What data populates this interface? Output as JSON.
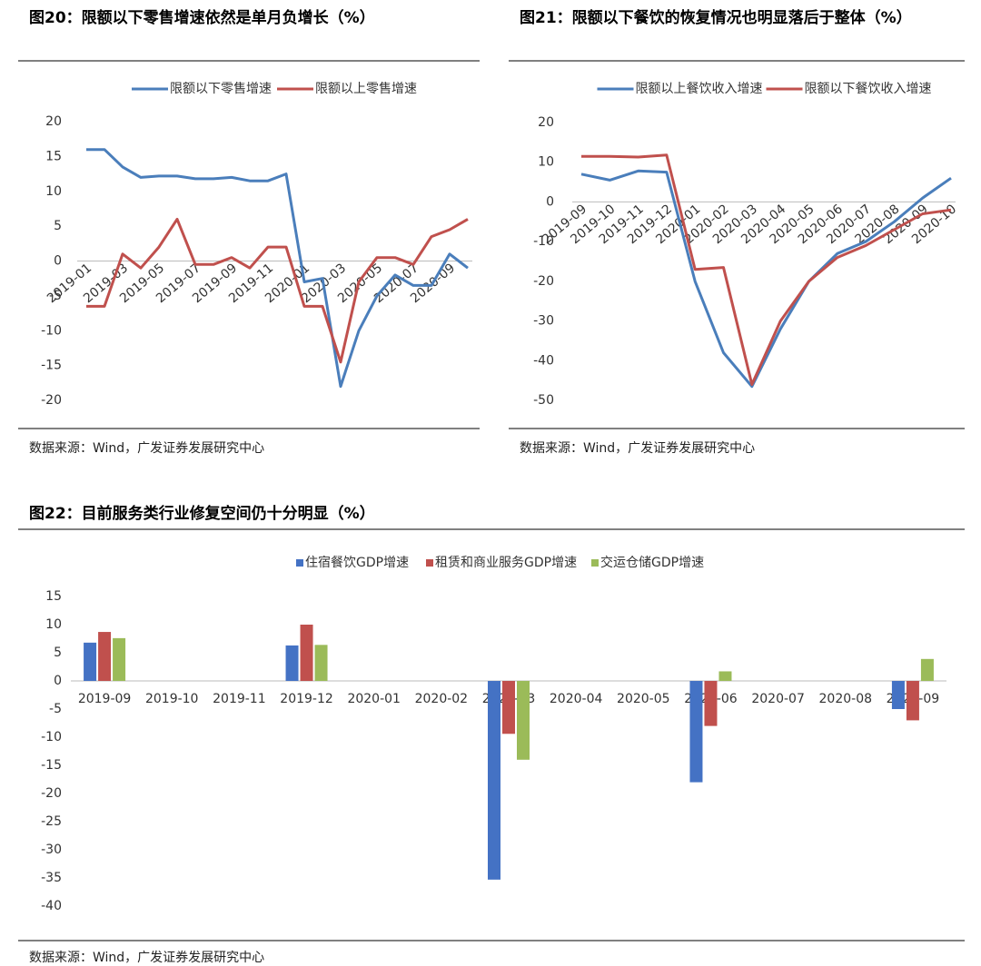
{
  "chart_data": [
    {
      "type": "line",
      "title": "图20：限额以下零售增速依然是单月负增长（%）",
      "source": "数据来源：Wind，广发证券发展研究中心",
      "categories": [
        "2019-01",
        null,
        "2019-03",
        null,
        "2019-05",
        null,
        "2019-07",
        null,
        "2019-09",
        null,
        "2019-11",
        null,
        "2020-01",
        null,
        "2020-03",
        null,
        "2020-05",
        null,
        "2020-07",
        null,
        "2020-09",
        null
      ],
      "series": [
        {
          "name": "限额以下零售增速",
          "color": "#4a7ebb",
          "values": [
            16,
            16,
            13.5,
            12,
            12.2,
            12.2,
            11.8,
            11.8,
            12,
            11.5,
            11.5,
            12.5,
            -3,
            -2.5,
            -18,
            -10,
            -5,
            -2,
            -3.5,
            -3.5,
            1,
            -1
          ]
        },
        {
          "name": "限额以上零售增速",
          "color": "#c0504d",
          "values": [
            -6.5,
            -6.5,
            1,
            -1,
            2,
            6,
            -0.5,
            -0.5,
            0.5,
            -1,
            2,
            2,
            -6.5,
            -6.5,
            -14.5,
            -3,
            0.5,
            0.5,
            -0.5,
            3.5,
            4.5,
            6
          ]
        }
      ],
      "ylim": [
        -20,
        20
      ],
      "yticks": [
        -20,
        -15,
        -10,
        -5,
        0,
        5,
        10,
        15,
        20
      ]
    },
    {
      "type": "line",
      "title": "图21：限额以下餐饮的恢复情况也明显落后于整体（%）",
      "source": "数据来源：Wind，广发证券发展研究中心",
      "categories": [
        "2019-09",
        "2019-10",
        "2019-11",
        "2019-12",
        "2020-01",
        "2020-02",
        "2020-03",
        "2020-04",
        "2020-05",
        "2020-06",
        "2020-07",
        "2020-08",
        "2020-09",
        "2020-10"
      ],
      "series": [
        {
          "name": "限额以上餐饮收入增速",
          "color": "#4a7ebb",
          "values": [
            7,
            5.5,
            7.8,
            7.5,
            -20,
            -38,
            -46.5,
            -32,
            -20,
            -13,
            -10,
            -5,
            1,
            6
          ]
        },
        {
          "name": "限额以下餐饮收入增速",
          "color": "#c0504d",
          "values": [
            11.5,
            11.5,
            11.3,
            11.8,
            -17,
            -16.5,
            -46,
            -30,
            -20,
            -14,
            -11,
            -7,
            -3,
            -2
          ]
        }
      ],
      "ylim": [
        -50,
        20
      ],
      "yticks": [
        -50,
        -40,
        -30,
        -20,
        -10,
        0,
        10,
        20
      ]
    },
    {
      "type": "bar",
      "title": "图22：目前服务类行业修复空间仍十分明显（%）",
      "source": "数据来源：Wind，广发证券发展研究中心",
      "categories": [
        "2019-09",
        "2019-10",
        "2019-11",
        "2019-12",
        "2020-01",
        "2020-02",
        "2020-03",
        "2020-04",
        "2020-05",
        "2020-06",
        "2020-07",
        "2020-08",
        "2020-09"
      ],
      "series": [
        {
          "name": "住宿餐饮GDP增速",
          "color": "#4472c4",
          "values": [
            6.8,
            null,
            null,
            6.3,
            null,
            null,
            -35.3,
            null,
            null,
            -18,
            null,
            null,
            -5
          ]
        },
        {
          "name": "租赁和商业服务GDP增速",
          "color": "#c0504d",
          "values": [
            8.7,
            null,
            null,
            10,
            null,
            null,
            -9.4,
            null,
            null,
            -8,
            null,
            null,
            -7
          ]
        },
        {
          "name": "交运仓储GDP增速",
          "color": "#9bbb59",
          "values": [
            7.6,
            null,
            null,
            6.4,
            null,
            null,
            -14,
            null,
            null,
            1.7,
            null,
            null,
            3.9
          ]
        }
      ],
      "ylim": [
        -40,
        15
      ],
      "yticks": [
        -40,
        -35,
        -30,
        -25,
        -20,
        -15,
        -10,
        -5,
        0,
        5,
        10,
        15
      ]
    }
  ]
}
